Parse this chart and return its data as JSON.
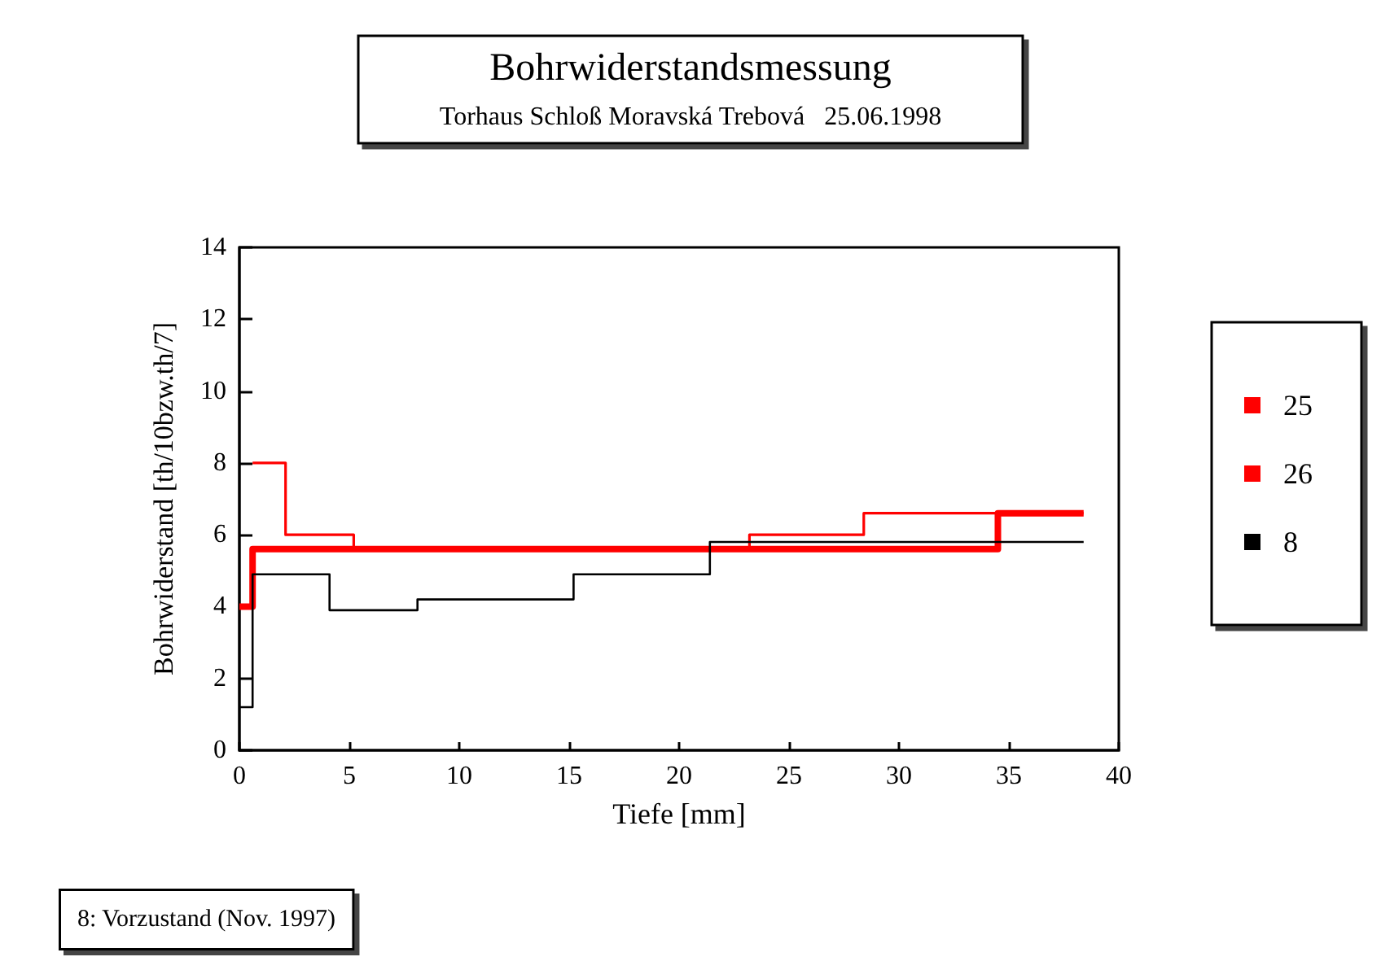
{
  "chart_data": {
    "type": "step",
    "title": "Bohrwiderstandsmessung",
    "subtitle": "Torhaus Schloß Moravská Trebová   25.06.1998",
    "xlabel": "Tiefe [mm]",
    "ylabel": "Bohrwiderstand [th/10bzw.th/7]",
    "xlim": [
      0,
      40
    ],
    "xticks": [
      0,
      5,
      10,
      15,
      20,
      25,
      30,
      35,
      40
    ],
    "ylim": [
      0,
      14
    ],
    "yticks": [
      0,
      2,
      4,
      6,
      8,
      10,
      12,
      14
    ],
    "grid": false,
    "legend": "right",
    "marker": "none",
    "line_style": "solid",
    "annotations": [
      "8: Vorzustand (Nov. 1997)"
    ],
    "series": [
      {
        "name": "25",
        "color": "#ff0000",
        "x": [
          0,
          0.6,
          34.5,
          38.4
        ],
        "values": [
          4,
          5.6,
          6.6,
          6.6
        ]
      },
      {
        "name": "26",
        "color": "#ff0000",
        "x": [
          0.6,
          2.1,
          5.2,
          23.2,
          28.4,
          38.4
        ],
        "values": [
          8,
          6,
          5.6,
          6,
          6.6,
          6.6
        ]
      },
      {
        "name": "8",
        "color": "#000000",
        "x": [
          0,
          0.6,
          4.1,
          8.1,
          15.2,
          21.4,
          38.4
        ],
        "values": [
          1.2,
          4.9,
          3.9,
          4.2,
          4.9,
          5.8,
          5.8
        ]
      }
    ]
  }
}
